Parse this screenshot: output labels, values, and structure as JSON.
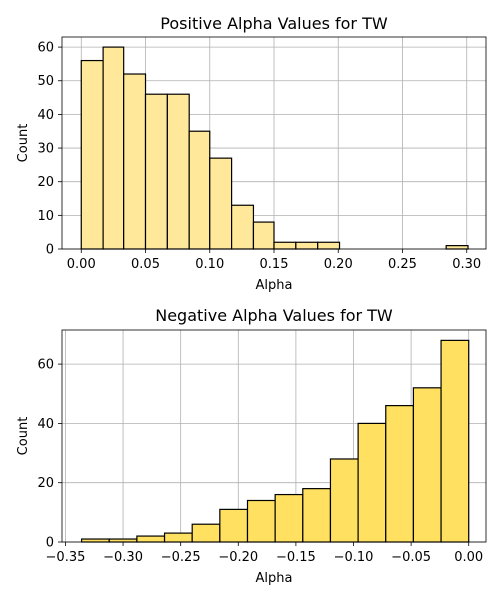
{
  "chart_data": [
    {
      "type": "bar",
      "subtype": "histogram",
      "title": "Positive Alpha Values for TW",
      "xlabel": "Alpha",
      "ylabel": "Count",
      "xlim": [
        -0.015,
        0.315
      ],
      "ylim": [
        0,
        63
      ],
      "xticks": [
        0.0,
        0.05,
        0.1,
        0.15,
        0.2,
        0.25,
        0.3
      ],
      "xtick_labels": [
        "0.00",
        "0.05",
        "0.10",
        "0.15",
        "0.20",
        "0.25",
        "0.30"
      ],
      "yticks": [
        0,
        10,
        20,
        30,
        40,
        50,
        60
      ],
      "ytick_labels": [
        "0",
        "10",
        "20",
        "30",
        "40",
        "50",
        "60"
      ],
      "grid": true,
      "bar_color": "#ffe899",
      "edge_color": "#000000",
      "bins": [
        {
          "x0": 0.0,
          "x1": 0.017,
          "value": 56
        },
        {
          "x0": 0.017,
          "x1": 0.033,
          "value": 60
        },
        {
          "x0": 0.033,
          "x1": 0.05,
          "value": 52
        },
        {
          "x0": 0.05,
          "x1": 0.067,
          "value": 46
        },
        {
          "x0": 0.067,
          "x1": 0.084,
          "value": 46
        },
        {
          "x0": 0.084,
          "x1": 0.1,
          "value": 35
        },
        {
          "x0": 0.1,
          "x1": 0.117,
          "value": 27
        },
        {
          "x0": 0.117,
          "x1": 0.134,
          "value": 13
        },
        {
          "x0": 0.134,
          "x1": 0.15,
          "value": 8
        },
        {
          "x0": 0.15,
          "x1": 0.167,
          "value": 2
        },
        {
          "x0": 0.167,
          "x1": 0.184,
          "value": 2
        },
        {
          "x0": 0.184,
          "x1": 0.201,
          "value": 2
        },
        {
          "x0": 0.201,
          "x1": 0.217,
          "value": 0
        },
        {
          "x0": 0.217,
          "x1": 0.234,
          "value": 0
        },
        {
          "x0": 0.234,
          "x1": 0.251,
          "value": 0
        },
        {
          "x0": 0.251,
          "x1": 0.267,
          "value": 0
        },
        {
          "x0": 0.267,
          "x1": 0.284,
          "value": 0
        },
        {
          "x0": 0.284,
          "x1": 0.301,
          "value": 1
        }
      ]
    },
    {
      "type": "bar",
      "subtype": "histogram",
      "title": "Negative Alpha Values for TW",
      "xlabel": "Alpha",
      "ylabel": "Count",
      "xlim": [
        -0.353,
        0.015
      ],
      "ylim": [
        0,
        71.5
      ],
      "xticks": [
        -0.35,
        -0.3,
        -0.25,
        -0.2,
        -0.15,
        -0.1,
        -0.05,
        0.0
      ],
      "xtick_labels": [
        "−0.35",
        "−0.30",
        "−0.25",
        "−0.20",
        "−0.15",
        "−0.10",
        "−0.05",
        "0.00"
      ],
      "yticks": [
        0,
        20,
        40,
        60
      ],
      "ytick_labels": [
        "0",
        "20",
        "40",
        "60"
      ],
      "grid": true,
      "bar_color": "#ffe060",
      "edge_color": "#000000",
      "bins": [
        {
          "x0": -0.336,
          "x1": -0.312,
          "value": 1
        },
        {
          "x0": -0.312,
          "x1": -0.288,
          "value": 1
        },
        {
          "x0": -0.288,
          "x1": -0.264,
          "value": 2
        },
        {
          "x0": -0.264,
          "x1": -0.24,
          "value": 3
        },
        {
          "x0": -0.24,
          "x1": -0.216,
          "value": 6
        },
        {
          "x0": -0.216,
          "x1": -0.192,
          "value": 11
        },
        {
          "x0": -0.192,
          "x1": -0.168,
          "value": 14
        },
        {
          "x0": -0.168,
          "x1": -0.144,
          "value": 16
        },
        {
          "x0": -0.144,
          "x1": -0.12,
          "value": 18
        },
        {
          "x0": -0.12,
          "x1": -0.096,
          "value": 28
        },
        {
          "x0": -0.096,
          "x1": -0.072,
          "value": 40
        },
        {
          "x0": -0.072,
          "x1": -0.048,
          "value": 46
        },
        {
          "x0": -0.048,
          "x1": -0.024,
          "value": 52
        },
        {
          "x0": -0.024,
          "x1": 0.0,
          "value": 68
        }
      ]
    }
  ]
}
